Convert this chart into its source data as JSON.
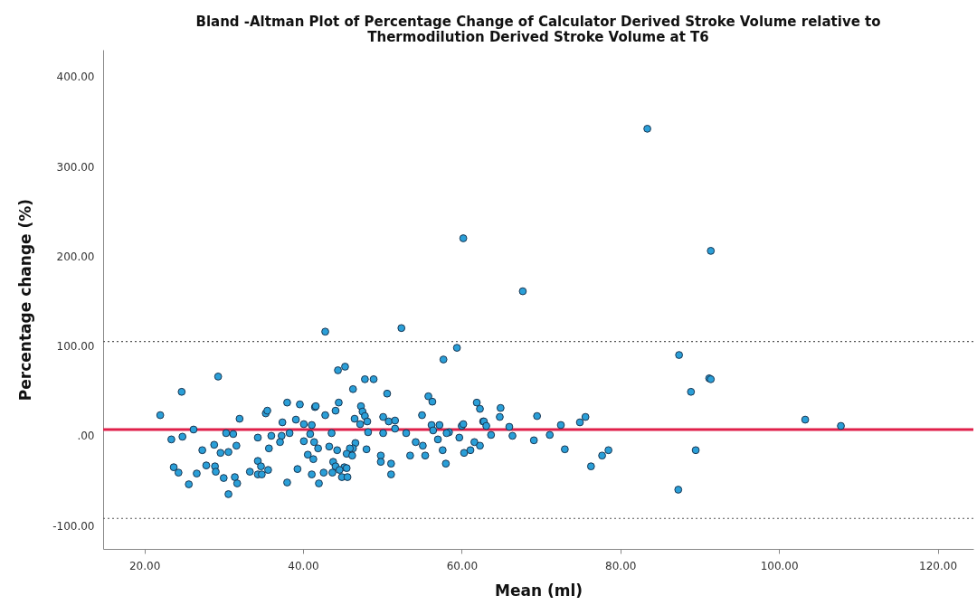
{
  "chart_data": {
    "type": "scatter",
    "title": "Bland -Altman Plot of Percentage Change of Calculator Derived Stroke Volume relative to Thermodilution Derived Stroke Volume at T6",
    "xlabel": "Mean (ml)",
    "ylabel": "Percentage change (%)",
    "xlim": [
      14.8,
      124.5
    ],
    "xticks": [
      {
        "value": 20,
        "label": "20.00"
      },
      {
        "value": 40,
        "label": "40.00"
      },
      {
        "value": 60,
        "label": "60.00"
      },
      {
        "value": 80,
        "label": "80.00"
      },
      {
        "value": 100,
        "label": "100.00"
      },
      {
        "value": 120,
        "label": "120.00"
      }
    ],
    "ylim": [
      -126,
      430
    ],
    "yticks": [
      {
        "value": -100,
        "label": "-100.00"
      },
      {
        "value": 0,
        "label": ".00"
      },
      {
        "value": 100,
        "label": "100.00"
      },
      {
        "value": 200,
        "label": "200.00"
      },
      {
        "value": 300,
        "label": "300.00"
      },
      {
        "value": 400,
        "label": "400.00"
      }
    ],
    "grid": false,
    "legend": false,
    "marker": "circle",
    "ref_lines": [
      {
        "axis": "y",
        "value": 7,
        "color": "#e0204a",
        "line_style": "solid"
      },
      {
        "axis": "y",
        "value": 105,
        "color": "#555555",
        "line_style": "dotted"
      },
      {
        "axis": "y",
        "value": -92,
        "color": "#555555",
        "line_style": "dotted"
      }
    ],
    "series": [
      {
        "color": "#2a9fd8",
        "x": [
          83.4,
          60.2,
          91.4,
          67.7,
          52.4,
          42.8,
          59.4,
          57.7,
          87.4,
          88.9,
          91.2,
          91.4,
          103.3,
          107.8,
          89.5,
          87.3,
          29.3,
          24.7,
          22.0,
          26.2,
          23.4,
          24.8,
          32.0,
          35.3,
          35.5,
          38.0,
          39.6,
          41.5,
          37.4,
          39.1,
          40.1,
          41.1,
          30.3,
          31.2,
          36.0,
          37.3,
          38.3,
          34.3,
          28.8,
          27.3,
          31.6,
          29.6,
          30.6,
          35.7,
          37.1,
          40.1,
          40.9,
          41.4,
          41.9,
          40.6,
          41.3,
          23.7,
          24.3,
          26.6,
          25.6,
          27.8,
          28.9,
          29.0,
          30.0,
          31.4,
          31.7,
          30.6,
          33.3,
          34.3,
          34.7,
          34.3,
          34.8,
          35.6,
          38.0,
          39.3,
          41.1,
          42.0,
          44.4,
          45.3,
          47.8,
          48.9,
          46.3,
          50.6,
          41.6,
          42.8,
          44.1,
          44.5,
          47.3,
          47.5,
          47.8,
          48.1,
          46.5,
          47.2,
          50.1,
          50.8,
          51.6,
          51.6,
          48.2,
          50.1,
          53.0,
          43.6,
          43.3,
          44.3,
          46.6,
          46.3,
          45.9,
          45.5,
          46.2,
          48.0,
          43.8,
          44.1,
          45.2,
          45.5,
          42.6,
          43.7,
          44.6,
          44.9,
          45.6,
          49.8,
          49.8,
          51.1,
          51.1,
          53.5,
          54.2,
          55.1,
          55.4,
          55.0,
          55.8,
          56.3,
          56.2,
          57.2,
          56.4,
          57.0,
          57.6,
          58.0,
          58.4,
          58.1,
          59.7,
          60.0,
          60.2,
          60.3,
          61.1,
          61.9,
          62.3,
          61.6,
          62.3,
          62.7,
          62.8,
          63.1,
          63.7,
          64.9,
          64.8,
          66.0,
          66.4,
          69.1,
          69.5,
          71.1,
          72.5,
          73.0,
          74.9,
          75.6,
          76.3,
          77.7,
          78.5
        ],
        "values": [
          342,
          220,
          206,
          161,
          120,
          116,
          98,
          85,
          90,
          49,
          64,
          63,
          18,
          11,
          -16,
          -60,
          66,
          49,
          23,
          7,
          -4,
          -1,
          19,
          25,
          28,
          37,
          35,
          32,
          15,
          18,
          13,
          12,
          3,
          2,
          0,
          0,
          3,
          -2,
          -10,
          -16,
          -11,
          -19,
          -18,
          -14,
          -7,
          -6,
          2,
          -7,
          -14,
          -21,
          -26,
          -35,
          -41,
          -42,
          -54,
          -33,
          -34,
          -40,
          -47,
          -46,
          -53,
          -65,
          -40,
          -28,
          -34,
          -43,
          -43,
          -38,
          -52,
          -37,
          -43,
          -53,
          73,
          77,
          63,
          63,
          52,
          47,
          33,
          23,
          28,
          37,
          33,
          27,
          22,
          16,
          19,
          13,
          21,
          16,
          17,
          8,
          4,
          3,
          3,
          3,
          -12,
          -16,
          -8,
          -14,
          -14,
          -20,
          -22,
          -15,
          -29,
          -34,
          -35,
          -36,
          -41,
          -41,
          -38,
          -46,
          -46,
          -22,
          -29,
          -31,
          -43,
          -22,
          -7,
          -11,
          -22,
          23,
          44,
          38,
          12,
          12,
          6,
          -4,
          -16,
          -31,
          4,
          3,
          -2,
          11,
          13,
          -19,
          -16,
          37,
          30,
          -7,
          -11,
          16,
          16,
          11,
          1,
          31,
          21,
          10,
          0,
          -5,
          22,
          1,
          12,
          -15,
          15,
          21,
          -34,
          -22,
          -16
        ]
      }
    ]
  }
}
